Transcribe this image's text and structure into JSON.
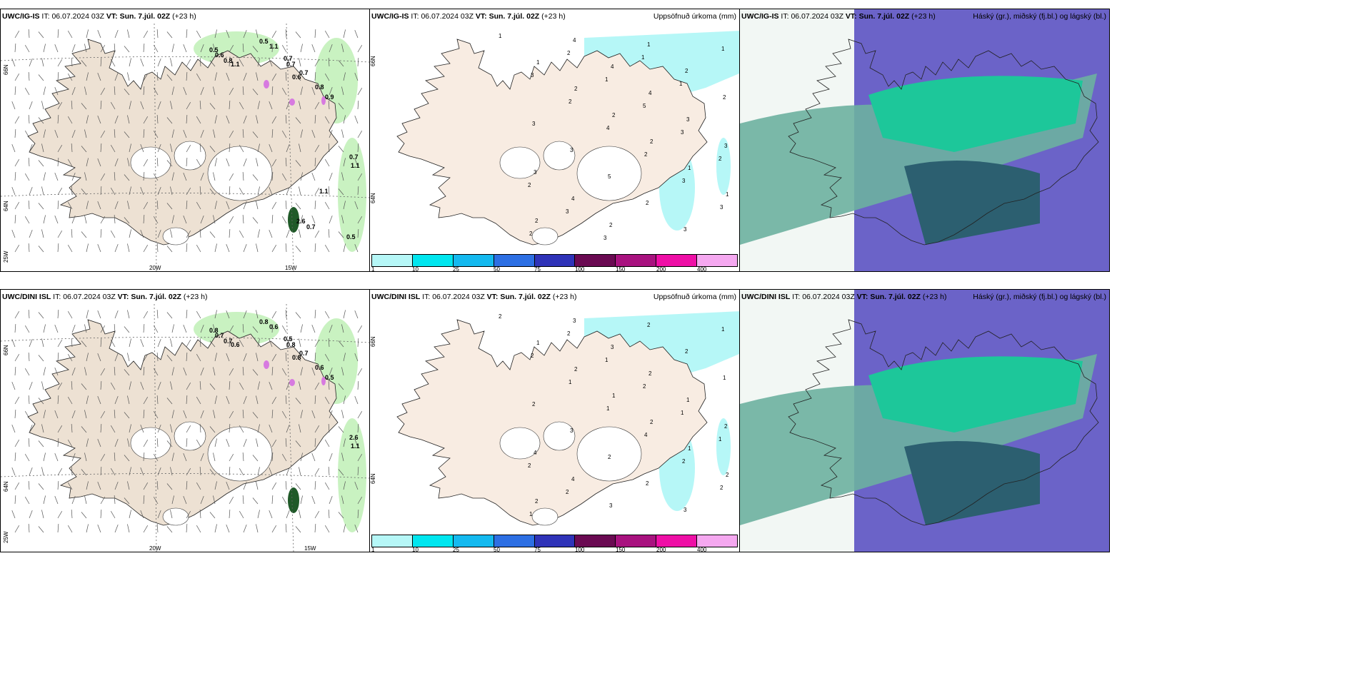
{
  "rows": [
    {
      "model": "UWC/IG-IS",
      "panels": [
        {
          "type": "wind",
          "issue_label": "IT:",
          "issue": "06.07.2024 03Z",
          "valid_label": "VT:",
          "valid": "Sun. 7.júl. 02Z",
          "lead": "(+23 h)",
          "right": ""
        },
        {
          "type": "precip",
          "issue_label": "IT:",
          "issue": "06.07.2024 03Z",
          "valid_label": "VT:",
          "valid": "Sun. 7.júl. 02Z",
          "lead": "(+23 h)",
          "right": "Uppsöfnuð úrkoma (mm)"
        },
        {
          "type": "cloud",
          "issue_label": "IT:",
          "issue": "06.07.2024 03Z",
          "valid_label": "VT:",
          "valid": "Sun. 7.júl. 02Z",
          "lead": "(+23 h)",
          "right": "Háský (gr.), miðský (fj.bl.) og lágský (bl.)"
        }
      ],
      "wind_labels": [
        "0.5",
        "0.6",
        "0.8",
        "1.1",
        "0.5",
        "1.1",
        "0.7",
        "0.7",
        "0.6",
        "0.7",
        "0.8",
        "0.9",
        "0.7",
        "1.1",
        "1.1",
        "2.6",
        "0.7",
        "0.5"
      ],
      "precip_labels": [
        "1",
        "1",
        "2",
        "2",
        "2",
        "1",
        "1",
        "2",
        "4",
        "4",
        "4",
        "3",
        "3",
        "3",
        "4",
        "2",
        "1",
        "2",
        "2",
        "3",
        "3",
        "5",
        "2",
        "3",
        "1",
        "3",
        "2",
        "4",
        "2",
        "3",
        "3",
        "2",
        "2",
        "1",
        "5",
        "3",
        "2",
        "2",
        "3",
        "3",
        "1",
        "1"
      ]
    },
    {
      "model": "UWC/DINI ISL",
      "panels": [
        {
          "type": "wind",
          "issue_label": "IT:",
          "issue": "06.07.2024 03Z",
          "valid_label": "VT:",
          "valid": "Sun. 7.júl. 02Z",
          "lead": "(+23 h)",
          "right": ""
        },
        {
          "type": "precip",
          "issue_label": "IT:",
          "issue": "06.07.2024 03Z",
          "valid_label": "VT:",
          "valid": "Sun. 7.júl. 02Z",
          "lead": "(+23 h)",
          "right": "Uppsöfnuð úrkoma (mm)"
        },
        {
          "type": "cloud",
          "issue_label": "IT:",
          "issue": "06.07.2024 03Z",
          "valid_label": "VT:",
          "valid": "Sun. 7.júl. 02Z",
          "lead": "(+23 h)",
          "right": "Háský (gr.), miðský (fj.bl.) og lágský (bl.)"
        }
      ],
      "wind_labels": [
        "0.8",
        "0.7",
        "0.7",
        "0.6",
        "0.8",
        "0.6",
        "0.5",
        "0.8",
        "0.8",
        "0.7",
        "0.6",
        "0.5",
        "2.6",
        "1.1"
      ],
      "precip_labels": [
        "2",
        "1",
        "2",
        "1",
        "2",
        "1",
        "2",
        "2",
        "3",
        "3",
        "2",
        "1",
        "2",
        "4",
        "4",
        "3",
        "2",
        "2",
        "1",
        "2",
        "3",
        "2",
        "2",
        "3",
        "1",
        "2",
        "1",
        "1",
        "4",
        "2",
        "2",
        "1",
        "2",
        "1",
        "2",
        "1",
        "1",
        "2",
        "2"
      ]
    }
  ],
  "axis_labels": {
    "lat66": "66N",
    "lat64": "64N",
    "lon20": "20W",
    "lon15": "15W",
    "lon25": "25W"
  },
  "legend": {
    "ticks": [
      "1",
      "10",
      "25",
      "50",
      "75",
      "100",
      "150",
      "200",
      "400"
    ],
    "colors": [
      "#b6f7f7",
      "#00e6ef",
      "#14b9ef",
      "#2d6fe3",
      "#2f33b8",
      "#6a0a52",
      "#a8127f",
      "#ee0fa6",
      "#f5a8f0"
    ]
  },
  "colors": {
    "land": "#ede1d3",
    "land_precip": "#f8ece2",
    "precip_light": "#b6f7f7",
    "wind_green": "#c9f2c1",
    "cloud_violet": "#6b63c8",
    "cloud_teal": "#1dc79a",
    "cloud_dark": "#2c5f70",
    "cloud_grey": "#6db0a0"
  }
}
